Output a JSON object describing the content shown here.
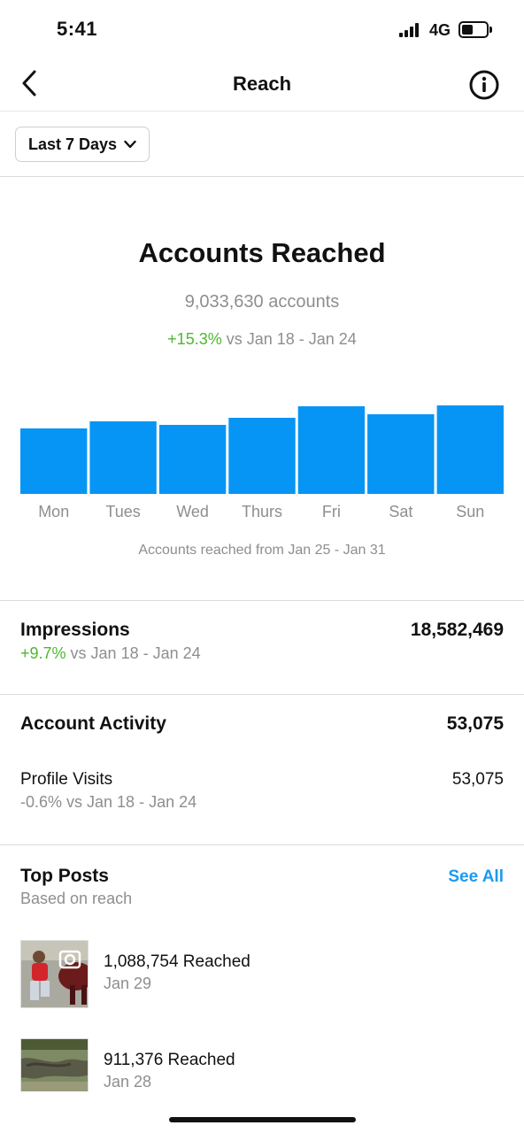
{
  "status_bar": {
    "time": "5:41",
    "network": "4G",
    "battery_level": 0.45
  },
  "header": {
    "title": "Reach",
    "back_icon": "chevron-left-icon",
    "info_icon": "info-icon"
  },
  "filter": {
    "label": "Last 7 Days"
  },
  "reach": {
    "title": "Accounts Reached",
    "count": "9,033,630 accounts",
    "change": "+15.3%",
    "compare": " vs Jan 18 - Jan 24",
    "caption": "Accounts reached from Jan 25 - Jan 31"
  },
  "chart_data": {
    "type": "bar",
    "categories": [
      "Mon",
      "Tues",
      "Wed",
      "Thurs",
      "Fri",
      "Sat",
      "Sun"
    ],
    "values": [
      74,
      82,
      78,
      86,
      99,
      90,
      100
    ],
    "ylim": [
      0,
      100
    ],
    "color": "#0795f5",
    "grid": false
  },
  "impressions": {
    "title": "Impressions",
    "value": "18,582,469",
    "change": "+9.7%",
    "compare": " vs Jan 18 - Jan 24"
  },
  "activity": {
    "title": "Account Activity",
    "value": "53,075",
    "profile_visits_label": "Profile Visits",
    "profile_visits_value": "53,075",
    "profile_visits_change": "-0.6% vs Jan 18 - Jan 24"
  },
  "top_posts": {
    "title": "Top Posts",
    "subtitle": "Based on reach",
    "see_all": "See All",
    "posts": [
      {
        "reached": "1,088,754 Reached",
        "date": "Jan 29"
      },
      {
        "reached": "911,376 Reached",
        "date": "Jan 28"
      }
    ]
  },
  "colors": {
    "accent": "#1a9bf0",
    "positive": "#4cb82e",
    "muted": "#8e8e8e",
    "bar": "#0795f5"
  }
}
